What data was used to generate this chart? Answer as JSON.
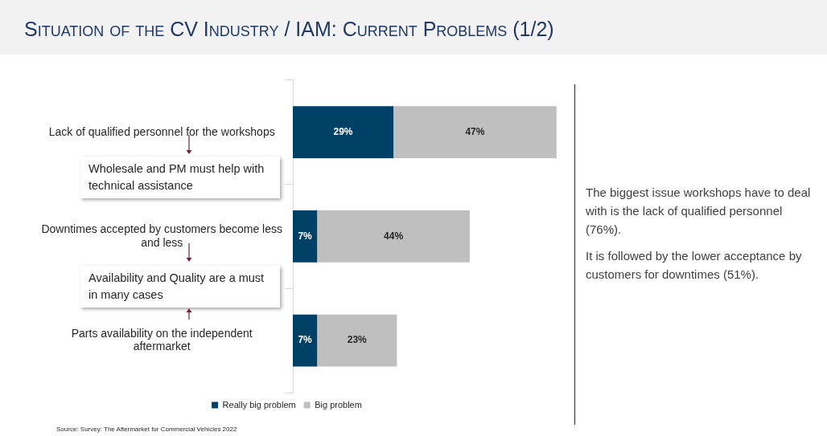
{
  "chart_data": {
    "type": "bar",
    "orientation": "horizontal",
    "stacked": true,
    "title": "Situation of the CV Industry / IAM: Current Problems (1/2)",
    "categories": [
      "Lack of qualified personnel for the workshops",
      "Downtimes accepted by customers become less and less",
      "Parts availability on the independent aftermarket"
    ],
    "series": [
      {
        "name": "Really big problem",
        "color": "#003f66",
        "values": [
          29,
          7,
          7
        ],
        "value_labels": [
          "29%",
          "7%",
          "7%"
        ]
      },
      {
        "name": "Big problem",
        "color": "#bfbfbf",
        "values": [
          47,
          44,
          23
        ],
        "value_labels": [
          "47%",
          "44%",
          "23%"
        ]
      }
    ],
    "legend": "bottom",
    "annotations": [
      "Wholesale and PM must help with technical assistance",
      "Availability and Quality are a must in many cases",
      "The biggest issue workshops have to deal with is the lack of qualified personnel (76%).",
      "It is followed by the lower acceptance by customers for downtimes (51%).",
      "Source: Survey: The Aftermarket for Commercial Vehicles 2022"
    ]
  }
}
